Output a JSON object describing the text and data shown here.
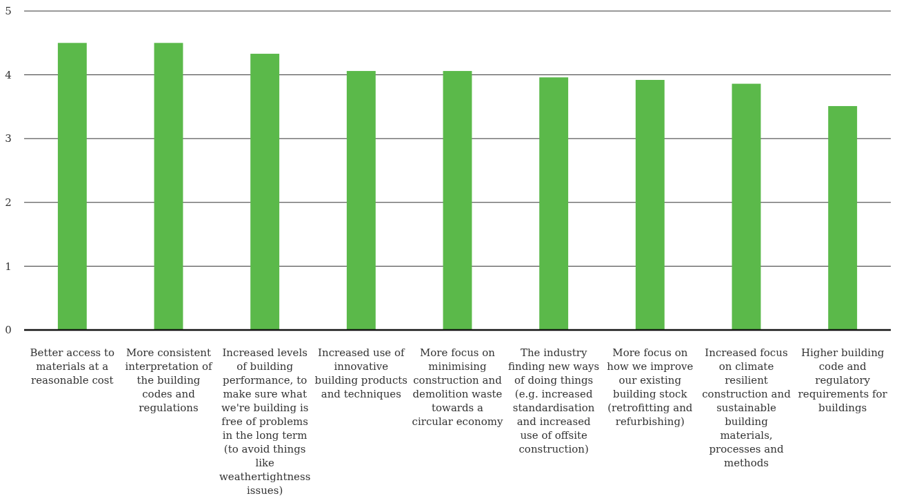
{
  "chart_data": {
    "type": "bar",
    "categories": [
      "Better access to materials at a reasonable cost",
      "More consistent interpretation of the building codes and regulations",
      "Increased levels of building performance, to make sure what we're building is free of problems in the long term (to avoid things like weathertightness issues)",
      "Increased use of innovative building products and techniques",
      "More focus on minimising construction and demolition waste towards a circular economy",
      "The industry finding new ways of doing things (e.g. increased standardisation and increased use of offsite construction)",
      "More focus on how we improve our existing building stock (retrofitting and refurbishing)",
      "Increased focus on climate resilient construction and sustainable building materials, processes and methods",
      "Higher building code and regulatory requirements for buildings"
    ],
    "values": [
      4.5,
      4.5,
      4.33,
      4.06,
      4.06,
      3.96,
      3.92,
      3.86,
      3.51
    ],
    "color": "#5bb94a",
    "ylim": [
      0,
      5
    ],
    "yticks": [
      0,
      1,
      2,
      3,
      4,
      5
    ],
    "grid": "y"
  }
}
